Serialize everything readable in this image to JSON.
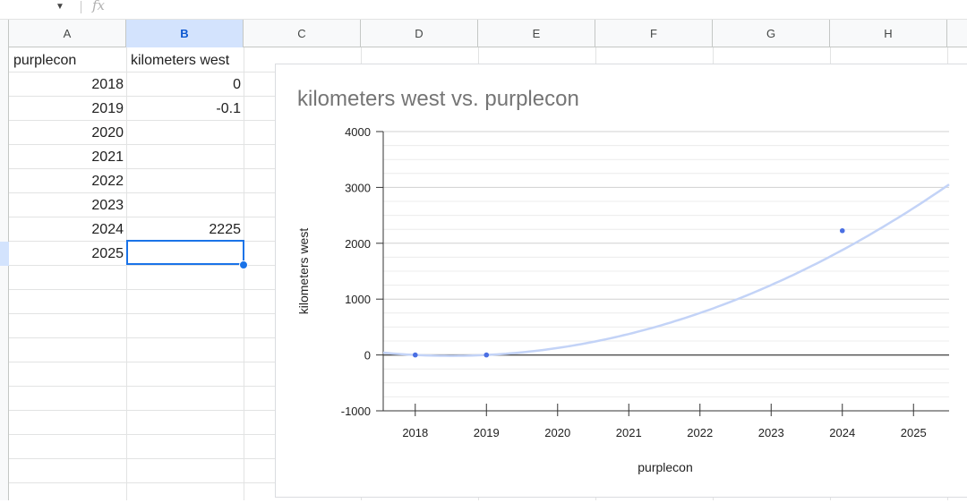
{
  "formula_bar": {
    "arrow_icon": "chevron-down-icon",
    "fx_label": "fx"
  },
  "columns": [
    "A",
    "B",
    "C",
    "D",
    "E",
    "F",
    "G",
    "H"
  ],
  "selected_column": "B",
  "sheet": {
    "headers": [
      "purplecon",
      "kilometers west"
    ],
    "rows": [
      {
        "a": "2018",
        "b": "0"
      },
      {
        "a": "2019",
        "b": "-0.1"
      },
      {
        "a": "2020",
        "b": ""
      },
      {
        "a": "2021",
        "b": ""
      },
      {
        "a": "2022",
        "b": ""
      },
      {
        "a": "2023",
        "b": ""
      },
      {
        "a": "2024",
        "b": "2225"
      },
      {
        "a": "2025",
        "b": ""
      }
    ],
    "selected_cell": "B9"
  },
  "chart_data": {
    "type": "scatter",
    "title": "kilometers west vs. purplecon",
    "xlabel": "purplecon",
    "ylabel": "kilometers west",
    "x_ticks": [
      "2018",
      "2019",
      "2020",
      "2021",
      "2022",
      "2023",
      "2024",
      "2025"
    ],
    "y_ticks": [
      "4000",
      "3000",
      "2000",
      "1000",
      "0",
      "-1000"
    ],
    "xlim": [
      2017.55,
      2025.5
    ],
    "ylim": [
      -1000,
      4000
    ],
    "grid": true,
    "series": [
      {
        "x": [
          2018,
          2019,
          2024
        ],
        "y": [
          0,
          -0.1,
          2225
        ],
        "color": "#4a6fe3"
      }
    ],
    "trendline": {
      "type": "polynomial",
      "degree": 2,
      "color": "#c3d3f7",
      "coefficients": [
        62.63,
        -62.73,
        0
      ],
      "x_origin": 2018
    }
  }
}
